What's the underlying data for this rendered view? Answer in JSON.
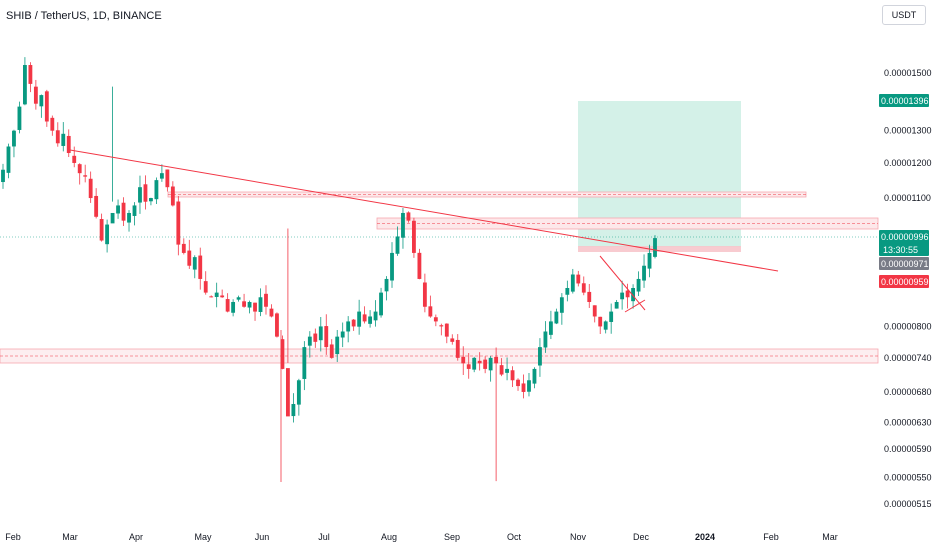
{
  "header": {
    "title": "SHIB / TetherUS, 1D, BINANCE",
    "currency_button": "USDT"
  },
  "chart_data": {
    "type": "candlestick",
    "symbol": "SHIB / TetherUS",
    "interval": "1D",
    "exchange": "BINANCE",
    "y_axis": {
      "scale": "log",
      "ticks": [
        "0.00001500",
        "0.00001300",
        "0.00001200",
        "0.00001100",
        "0.00000800",
        "0.00000740",
        "0.00000680",
        "0.00000630",
        "0.00000590",
        "0.00000550",
        "0.00000515"
      ],
      "range": [
        5e-06,
        1.65e-05
      ]
    },
    "x_axis": {
      "ticks": [
        "Feb",
        "Mar",
        "Apr",
        "May",
        "Jun",
        "Jul",
        "Aug",
        "Sep",
        "Oct",
        "Nov",
        "Dec",
        "2024",
        "Feb",
        "Mar"
      ],
      "bold_ticks": [
        "2024"
      ]
    },
    "price_tags": [
      {
        "label": "0.00001396",
        "value": 1.396e-05,
        "color": "#089981"
      },
      {
        "label": "0.00000996",
        "value": 9.96e-06,
        "color": "#089981",
        "sub": "13:30:55"
      },
      {
        "label": "0.00000971",
        "value": 9.71e-06,
        "color": "#787b86"
      },
      {
        "label": "0.00000959",
        "value": 9.59e-06,
        "color": "#f23645"
      }
    ],
    "up_color": "#089981",
    "down_color": "#f23645",
    "drawing_color": "#f23645",
    "target_zone_color": "#cdeee4",
    "series_close": [
      [
        1.18e-05,
        1.25e-05,
        1.3e-05,
        1.38e-05,
        1.53e-05,
        1.46e-05,
        1.39e-05,
        1.42e-05,
        1.33e-05,
        1.3e-05,
        1.26e-05,
        1.29e-05,
        1.23e-05,
        1.2e-05
      ],
      [
        1.17e-05,
        1.16e-05,
        1.1e-05,
        1.05e-05,
        9.9e-06,
        1.03e-05,
        1.06e-05,
        1.08e-05,
        1.04e-05,
        1.06e-05,
        1.08e-05,
        1.13e-05,
        1.09e-05,
        1.1e-05
      ],
      [
        1.15e-05,
        1.17e-05,
        1.13e-05,
        1.08e-05,
        9.8e-06,
        9.6e-06,
        9.3e-06,
        9.5e-06,
        9e-06,
        8.7e-06,
        8.6e-06,
        8.7e-06,
        8.6e-06,
        8.3e-06
      ],
      [
        8.5e-06,
        8.6e-06,
        8.4e-06,
        8.5e-06,
        8.3e-06,
        8.6e-06,
        8.4e-06,
        8.2e-06,
        7.8e-06,
        7.2e-06,
        6.4e-06,
        6.6e-06,
        7e-06,
        7.6e-06
      ],
      [
        7.8e-06,
        7.7e-06,
        8e-06,
        7.6e-06,
        7.4e-06,
        7.8e-06,
        7.9e-06,
        8.1e-06,
        8e-06,
        8.3e-06,
        8.1e-06,
        8.2e-06,
        8.3e-06,
        8.7e-06
      ],
      [
        9e-06,
        9.6e-06,
        1e-05,
        1.06e-05,
        1.04e-05,
        9.6e-06,
        9e-06,
        8.4e-06,
        8.2e-06,
        8.1e-06,
        8e-06,
        7.8e-06,
        7.7e-06,
        7.4e-06
      ],
      [
        7.3e-06,
        7.2e-06,
        7.4e-06,
        7.3e-06,
        7.2e-06,
        7.4e-06,
        7.3e-06,
        7.1e-06,
        7.2e-06,
        7e-06,
        6.9e-06,
        6.8e-06,
        7e-06,
        7.2e-06
      ],
      [
        7.6e-06,
        7.9e-06,
        8.1e-06,
        8.3e-06,
        8.6e-06,
        8.8e-06,
        9.1e-06,
        8.9e-06,
        8.7e-06,
        8.5e-06,
        8.2e-06,
        8e-06,
        8.1e-06,
        8.3e-06
      ],
      [
        8.5e-06,
        8.7e-06,
        8.6e-06,
        8.8e-06,
        9e-06,
        9.3e-06,
        9.6e-06,
        9.96e-06
      ]
    ]
  }
}
